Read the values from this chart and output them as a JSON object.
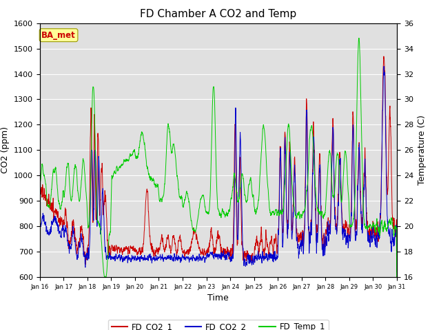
{
  "title": "FD Chamber A CO2 and Temp",
  "xlabel": "Time",
  "ylabel_left": "CO2 (ppm)",
  "ylabel_right": "Temperature (C)",
  "ylim_left": [
    600,
    1600
  ],
  "ylim_right": [
    16,
    36
  ],
  "yticks_left": [
    600,
    700,
    800,
    900,
    1000,
    1100,
    1200,
    1300,
    1400,
    1500,
    1600
  ],
  "yticks_right": [
    16,
    18,
    20,
    22,
    24,
    26,
    28,
    30,
    32,
    34,
    36
  ],
  "xtick_labels": [
    "Jan 16",
    "Jan 17",
    "Jan 18",
    "Jan 19",
    "Jan 20",
    "Jan 21",
    "Jan 22",
    "Jan 23",
    "Jan 24",
    "Jan 25",
    "Jan 26",
    "Jan 27",
    "Jan 28",
    "Jan 29",
    "Jan 30",
    "Jan 31"
  ],
  "color_co2_1": "#cc0000",
  "color_co2_2": "#0000cc",
  "color_temp": "#00cc00",
  "legend_label_1": "FD_CO2_1",
  "legend_label_2": "FD_CO2_2",
  "legend_label_3": "FD_Temp_1",
  "annotation_text": "BA_met",
  "annotation_color": "#cc0000",
  "annotation_bg": "#ffff99",
  "background_color": "#e0e0e0",
  "grid_color": "#ffffff",
  "title_fontsize": 11,
  "axis_fontsize": 9,
  "tick_fontsize": 8
}
